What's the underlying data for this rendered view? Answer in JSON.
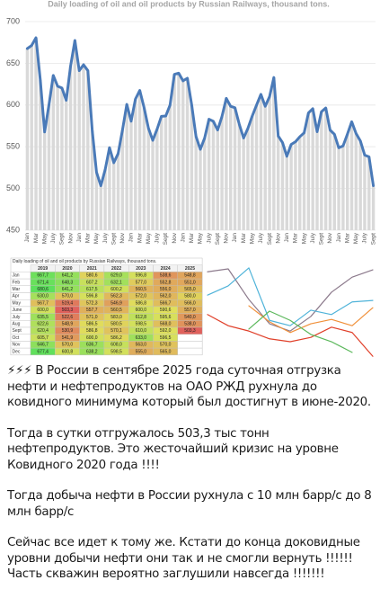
{
  "chart_data": [
    {
      "type": "line",
      "title": "Daily loading of oil and oil products by Russian Railways, thousand tons.",
      "categories": [
        "Jan",
        null,
        "Mar",
        null,
        "May",
        null,
        "July",
        null,
        "Sept",
        null,
        "Nov",
        null,
        "Jan",
        null,
        "Mar",
        null,
        "May",
        null,
        "July",
        null,
        "Sept",
        null,
        "Nov",
        null,
        "Jan",
        null,
        "Mar",
        null,
        "May",
        null,
        "July",
        null,
        "Sept",
        null,
        "Nov",
        null,
        "Jan",
        null,
        "Mar",
        null,
        "May",
        null,
        "July",
        null,
        "Sept",
        null,
        "Nov",
        null,
        "Jan",
        null,
        "Mar",
        null,
        "May",
        null,
        "July",
        null,
        "Sept",
        null,
        "Nov",
        null,
        "Jan",
        null,
        "Mar",
        null,
        "May",
        null,
        "July",
        null,
        "Sept",
        null,
        "Nov",
        null,
        "Jan",
        null,
        "Mar",
        null,
        "May",
        null,
        "July",
        null,
        "Sept"
      ],
      "series": [
        {
          "color": "#4a7ab8",
          "bar_color": "#d9d9d9",
          "values": [
            667.7,
            671.4,
            680.6,
            630.0,
            567.7,
            600.0,
            635.5,
            622.6,
            620.4,
            605.7,
            646.7,
            677.4,
            641.2,
            648.3,
            641.2,
            570.0,
            519.4,
            503.3,
            522.6,
            548.9,
            530.9,
            541.9,
            570.0,
            600.8,
            580.6,
            607.2,
            617.5,
            596.8,
            572.3,
            557.7,
            571.0,
            586.5,
            586.8,
            600.0,
            636.7,
            638.2,
            629.0,
            632.1,
            600.2,
            562.3,
            546.9,
            560.5,
            583.0,
            580.5,
            570.1,
            586.2,
            608.0,
            598.5,
            596.8,
            577.0,
            560.5,
            572.0,
            586.8,
            600.0,
            612.8,
            598.5,
            610.0,
            633.0,
            563.0,
            555.0,
            538.6,
            552.8,
            556.0,
            562.0,
            566.7,
            590.6,
            595.6,
            568.0,
            592.0,
            596.5,
            570.0,
            565.0,
            548.8,
            551.0,
            565.0,
            580.0,
            566.0,
            557.0,
            540.0,
            538.0,
            503.3
          ]
        }
      ],
      "bars": true,
      "ylim": [
        450,
        700
      ],
      "yticks": [
        450,
        500,
        550,
        600,
        650,
        700
      ],
      "grid": true
    },
    {
      "type": "line",
      "series": [
        {
          "color": "#8c7a8c",
          "values": [
            681,
            687,
            624,
            574,
            559,
            589,
            639,
            670,
            685
          ]
        },
        {
          "color": "#4fb3d9",
          "values": [
            633,
            652,
            689,
            581,
            570,
            602,
            593,
            619,
            622
          ]
        },
        {
          "color": "#f0903a",
          "values": [
            null,
            null,
            611,
            578,
            556,
            574,
            583,
            570,
            607
          ]
        },
        {
          "color": "#e0402a",
          "values": [
            593,
            570,
            559,
            543,
            537,
            546,
            567,
            556,
            507
          ]
        },
        {
          "color": "#5cb85c",
          "values": [
            null,
            null,
            563,
            600,
            581,
            552,
            537,
            515,
            null
          ]
        }
      ],
      "ylim": [
        500,
        700
      ]
    }
  ],
  "table": {
    "title": "Daily loading of oil and oil products by Russian Railways, thousand tons.",
    "header": [
      "2019",
      "2020",
      "2021",
      "2022",
      "2023",
      "2024",
      "2025"
    ],
    "rows": [
      [
        "Jan",
        "667,7",
        "641,2",
        "580,6",
        "629,0",
        "596,8",
        "538,6",
        "548,8"
      ],
      [
        "Feb",
        "671,4",
        "648,3",
        "607,2",
        "632,1",
        "577,0",
        "552,8",
        "551,0"
      ],
      [
        "Mar",
        "680,6",
        "641,2",
        "617,5",
        "600,2",
        "560,5",
        "556,0",
        "565,0"
      ],
      [
        "Apr",
        "630,0",
        "570,0",
        "596,8",
        "562,3",
        "572,0",
        "562,0",
        "580,0"
      ],
      [
        "May",
        "567,7",
        "519,4",
        "572,3",
        "546,9",
        "586,8",
        "566,7",
        "566,0"
      ],
      [
        "June",
        "600,0",
        "503,3",
        "557,7",
        "560,5",
        "600,0",
        "590,6",
        "557,0"
      ],
      [
        "July",
        "635,5",
        "522,6",
        "571,0",
        "583,0",
        "612,8",
        "595,6",
        "540,0"
      ],
      [
        "Aug",
        "622,6",
        "548,9",
        "586,5",
        "580,5",
        "598,5",
        "568,0",
        "538,0"
      ],
      [
        "Sept",
        "620,4",
        "530,9",
        "586,8",
        "570,1",
        "610,0",
        "592,0",
        "503,3"
      ],
      [
        "Oct",
        "605,7",
        "541,9",
        "600,0",
        "586,2",
        "633,0",
        "596,5",
        null
      ],
      [
        "Nov",
        "646,7",
        "570,0",
        "636,7",
        "608,0",
        "563,0",
        "570,0",
        null
      ],
      [
        "Dec",
        "677,4",
        "600,8",
        "638,2",
        "598,5",
        "555,0",
        "565,0",
        null
      ]
    ]
  },
  "post": {
    "paragraphs": [
      "⚡⚡⚡ В России в сентябре 2025 года суточная отгрузка нефти и нефтепродуктов на ОАО РЖД рухнула до ковидного минимума который был достигнут в июне-2020.",
      "Тогда в сутки отгружалось 503,3 тыс тонн нефтепродуктов. Это жесточайший кризис на уровне Ковидного 2020 года !!!!",
      "Тогда добыча нефти в России рухнула с 10 млн барр/с до 8 млн барр/с",
      "Сейчас все идет к тому же. Кстати до конца доковидные уровни добычи нефти они так и не смогли вернуть !!!!!! Часть скважин вероятно заглушили навсегда !!!!!!!"
    ]
  }
}
